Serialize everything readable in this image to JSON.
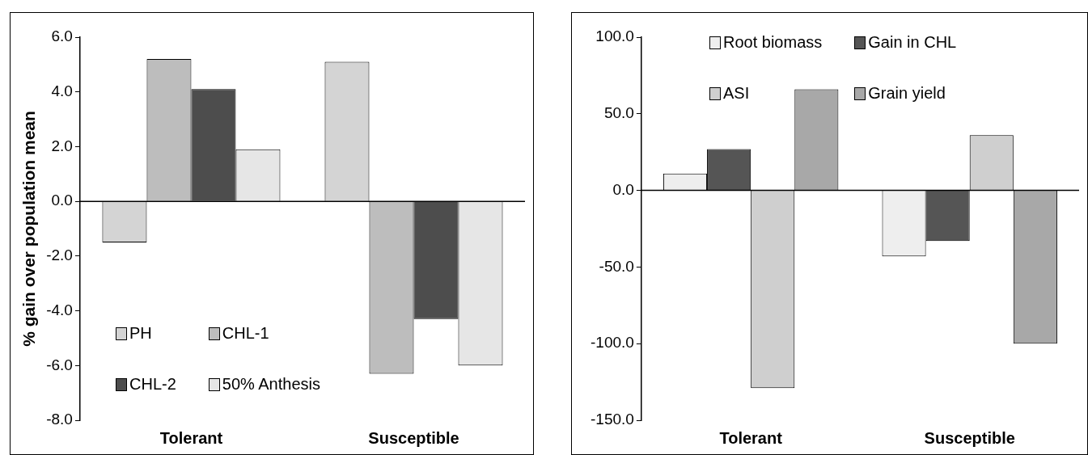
{
  "chart_data": [
    {
      "type": "bar",
      "ylabel": "% gain over population mean",
      "categories": [
        "Tolerant",
        "Susceptible"
      ],
      "ylim": [
        -8,
        6
      ],
      "yticks": [
        {
          "value": 6,
          "label": "6.0"
        },
        {
          "value": 4,
          "label": "4.0"
        },
        {
          "value": 2,
          "label": "2.0"
        },
        {
          "value": 0,
          "label": "0.0"
        },
        {
          "value": -2,
          "label": "-2.0"
        },
        {
          "value": -4,
          "label": "-4.0"
        },
        {
          "value": -6,
          "label": "-6.0"
        },
        {
          "value": -8,
          "label": "-8.0"
        }
      ],
      "legend": "bottom left",
      "series": [
        {
          "name": "PH",
          "color": "#d4d4d4",
          "values": [
            -1.5,
            5.1
          ]
        },
        {
          "name": "CHL-1",
          "color": "#bdbdbd",
          "values": [
            5.2,
            -6.3
          ]
        },
        {
          "name": "CHL-2",
          "color": "#4d4d4d",
          "values": [
            4.1,
            -4.3
          ]
        },
        {
          "name": "50% Anthesis",
          "color": "#e6e6e6",
          "values": [
            1.9,
            -6.0
          ]
        }
      ]
    },
    {
      "type": "bar",
      "categories": [
        "Tolerant",
        "Susceptible"
      ],
      "ylim": [
        -150,
        100
      ],
      "yticks": [
        {
          "value": 100,
          "label": "100.0"
        },
        {
          "value": 50,
          "label": "50.0"
        },
        {
          "value": 0,
          "label": "0.0"
        },
        {
          "value": -50,
          "label": "-50.0"
        },
        {
          "value": -100,
          "label": "-100.0"
        },
        {
          "value": -150,
          "label": "-150.0"
        }
      ],
      "legend": "top",
      "series": [
        {
          "name": "Root biomass",
          "color": "#eeeeee",
          "values": [
            11,
            -43
          ]
        },
        {
          "name": "Gain in CHL",
          "color": "#555555",
          "values": [
            27,
            -33
          ]
        },
        {
          "name": "ASI",
          "color": "#cfcfcf",
          "values": [
            -129,
            36
          ]
        },
        {
          "name": "Grain yield",
          "color": "#a8a8a8",
          "values": [
            66,
            -100
          ]
        }
      ]
    }
  ]
}
